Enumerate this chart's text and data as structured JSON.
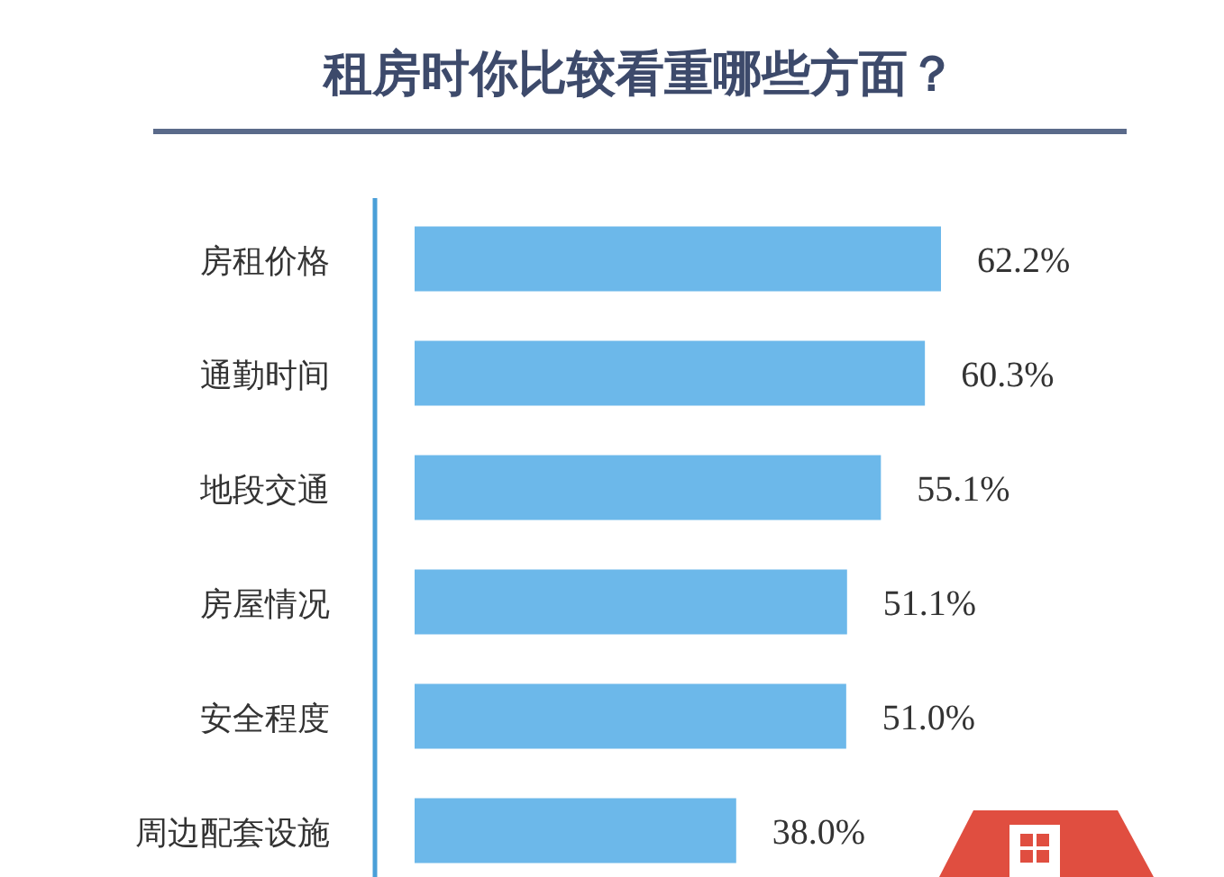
{
  "chart_data": {
    "type": "bar",
    "orientation": "horizontal",
    "title": "租房时你比较看重哪些方面？",
    "categories": [
      "房租价格",
      "通勤时间",
      "地段交通",
      "房屋情况",
      "安全程度",
      "周边配套设施"
    ],
    "values": [
      62.2,
      60.3,
      55.1,
      51.1,
      51.0,
      38.0
    ],
    "value_labels": [
      "62.2%",
      "60.3%",
      "55.1%",
      "51.1%",
      "51.0%",
      "38.0%"
    ],
    "color": "#6cb8ea"
  }
}
